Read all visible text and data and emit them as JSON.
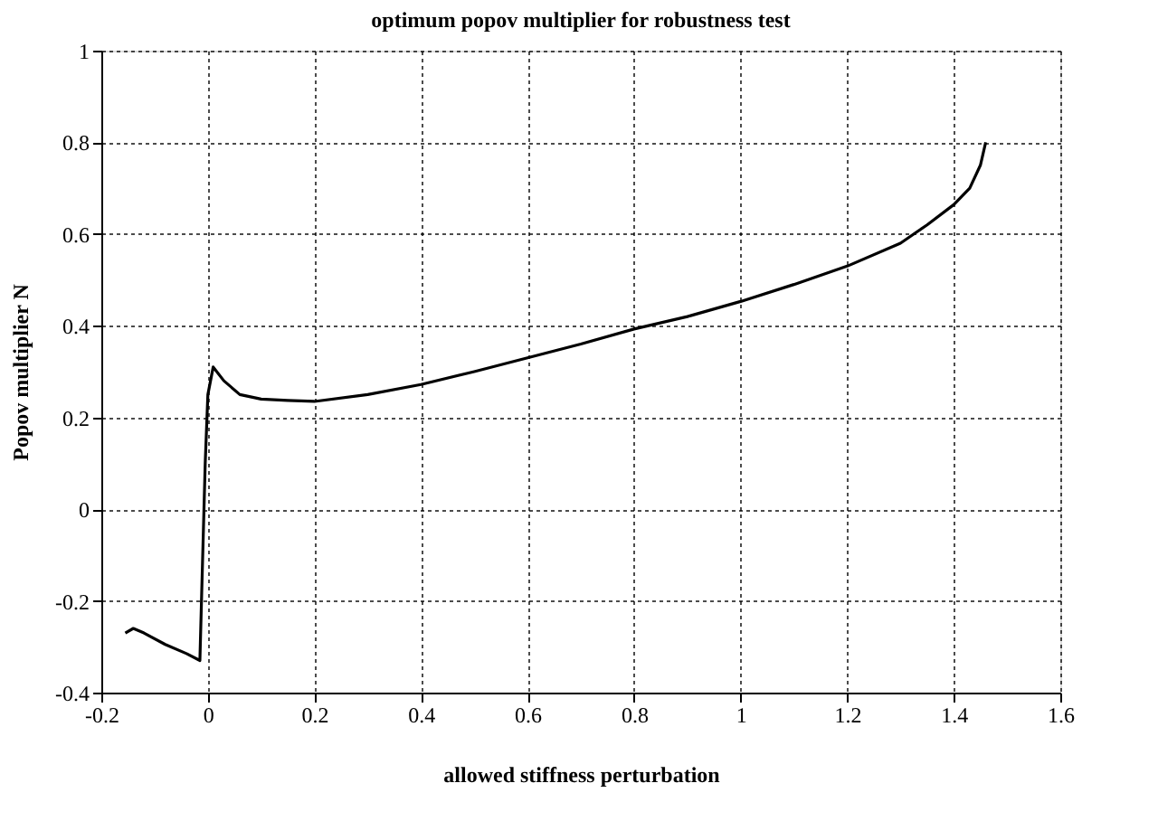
{
  "chart_data": {
    "type": "line",
    "title": "optimum popov multiplier for robustness test",
    "xlabel": "allowed stiffness perturbation",
    "ylabel": "Popov multiplier N",
    "series": [
      {
        "color": "#000000",
        "x": [
          -0.155,
          -0.14,
          -0.12,
          -0.08,
          -0.04,
          -0.015,
          -0.012,
          -0.005,
          0.0,
          0.01,
          0.03,
          0.06,
          0.1,
          0.15,
          0.2,
          0.3,
          0.4,
          0.5,
          0.6,
          0.7,
          0.8,
          0.9,
          1.0,
          1.1,
          1.2,
          1.3,
          1.35,
          1.4,
          1.43,
          1.45,
          1.46
        ],
        "values": [
          -0.27,
          -0.26,
          -0.27,
          -0.295,
          -0.315,
          -0.33,
          -0.2,
          0.1,
          0.25,
          0.31,
          0.28,
          0.25,
          0.24,
          0.237,
          0.235,
          0.25,
          0.272,
          0.3,
          0.33,
          0.36,
          0.393,
          0.42,
          0.453,
          0.49,
          0.53,
          0.58,
          0.62,
          0.664,
          0.7,
          0.75,
          0.8
        ]
      }
    ],
    "xlim": [
      -0.2,
      1.6
    ],
    "xticks": [
      -0.2,
      0,
      0.2,
      0.4,
      0.6,
      0.8,
      1,
      1.2,
      1.4,
      1.6
    ],
    "ylim": [
      -0.4,
      1
    ],
    "yticks": [
      -0.4,
      -0.2,
      0,
      0.2,
      0.4,
      0.6,
      0.8,
      1
    ],
    "grid": true,
    "line_style": "solid",
    "marker": "none"
  }
}
